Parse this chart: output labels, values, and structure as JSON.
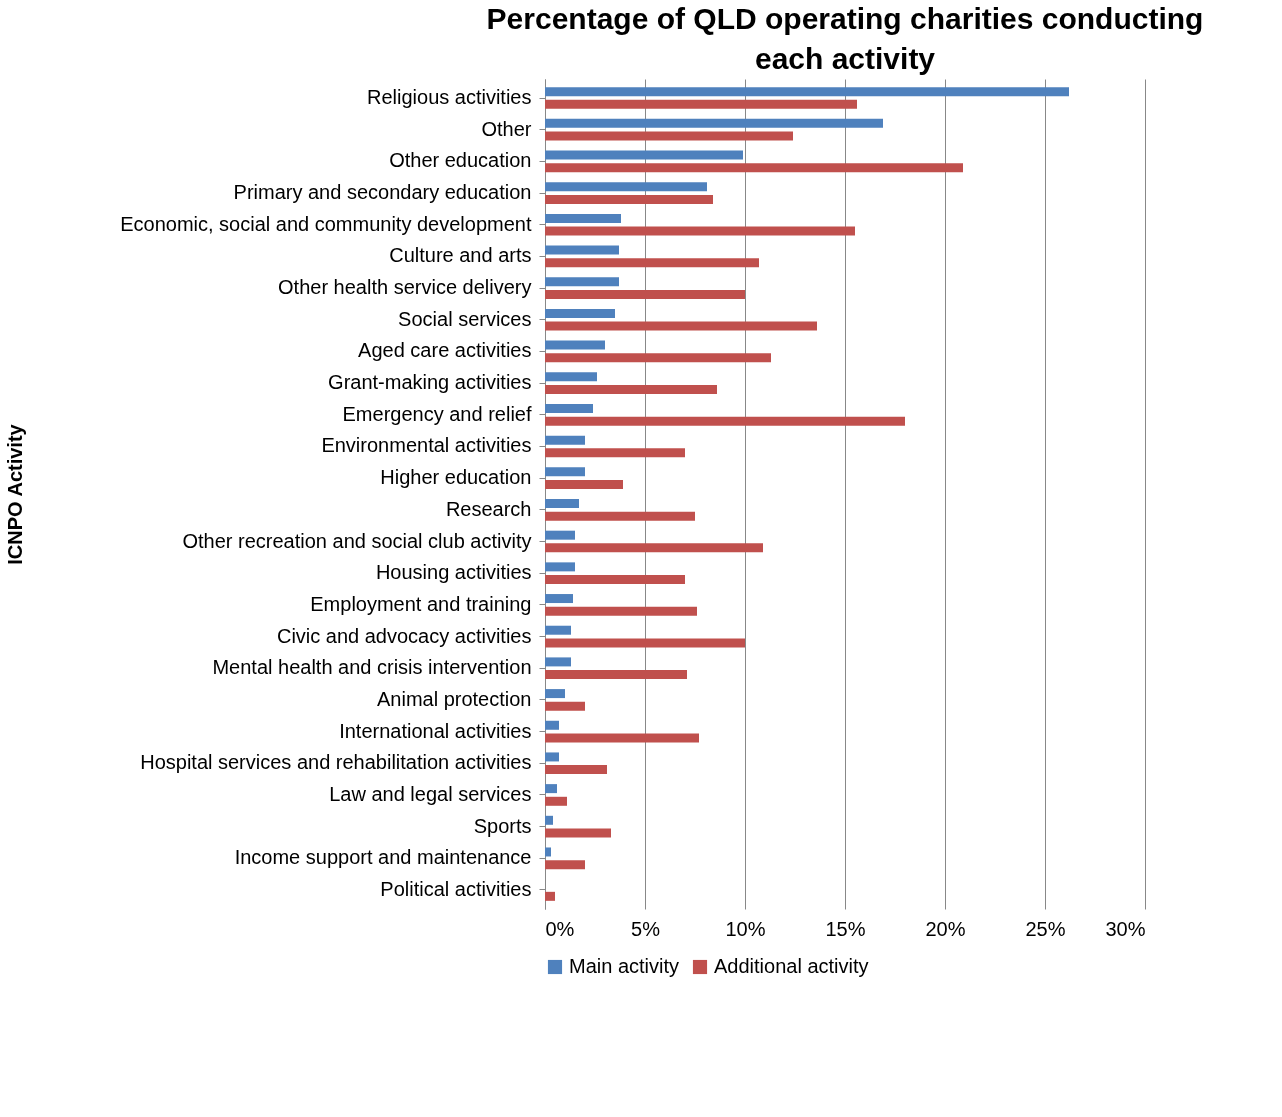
{
  "chart_data": {
    "type": "bar",
    "orientation": "horizontal",
    "title": "Percentage of QLD operating charities conducting each activity",
    "ylabel": "ICNPO Activity",
    "categories": [
      "Religious activities",
      "Other",
      "Other education",
      "Primary and secondary education",
      "Economic, social and community development",
      "Culture and arts",
      "Other health service delivery",
      "Social services",
      "Aged care activities",
      "Grant-making activities",
      "Emergency and relief",
      "Environmental activities",
      "Higher education",
      "Research",
      "Other recreation and social club activity",
      "Housing activities",
      "Employment and training",
      "Civic and advocacy activities",
      "Mental health and crisis intervention",
      "Animal protection",
      "International activities",
      "Hospital services and rehabilitation activities",
      "Law and legal services",
      "Sports",
      "Income support and maintenance",
      "Political activities"
    ],
    "series": [
      {
        "name": "Main activity",
        "color": "#4f81bd",
        "values": [
          26.2,
          16.9,
          9.9,
          8.1,
          3.8,
          3.7,
          3.7,
          3.5,
          3.0,
          2.6,
          2.4,
          2.0,
          2.0,
          1.7,
          1.5,
          1.5,
          1.4,
          1.3,
          1.3,
          1.0,
          0.7,
          0.7,
          0.6,
          0.4,
          0.3,
          0
        ]
      },
      {
        "name": "Additional activity",
        "color": "#c0504d",
        "values": [
          15.6,
          12.4,
          20.9,
          8.4,
          15.5,
          10.7,
          10.0,
          13.6,
          11.3,
          8.6,
          18.0,
          7.0,
          3.9,
          7.5,
          10.9,
          7.0,
          7.6,
          10.0,
          7.1,
          2.0,
          7.7,
          3.1,
          1.1,
          3.3,
          2.0,
          0.5
        ]
      }
    ],
    "xlim": [
      0,
      30
    ],
    "xticks": [
      {
        "value": 0,
        "label": "0%"
      },
      {
        "value": 5,
        "label": "5%"
      },
      {
        "value": 10,
        "label": "10%"
      },
      {
        "value": 15,
        "label": "15%"
      },
      {
        "value": 20,
        "label": "20%"
      },
      {
        "value": 25,
        "label": "25%"
      },
      {
        "value": 30,
        "label": "30%"
      }
    ],
    "grid": "x",
    "legend": "bottom"
  }
}
